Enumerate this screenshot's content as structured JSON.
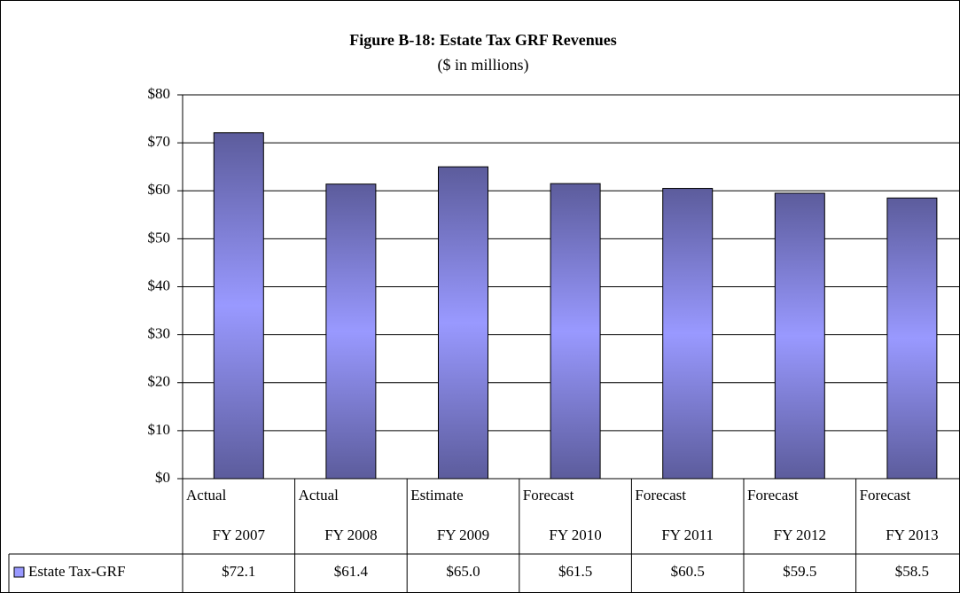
{
  "chart_data": {
    "type": "bar",
    "title": "Figure B-18: Estate Tax  GRF Revenues",
    "subtitle": "($ in millions)",
    "categories": [
      [
        "Actual",
        "FY 2007"
      ],
      [
        "Actual",
        "FY 2008"
      ],
      [
        "Estimate",
        "FY 2009"
      ],
      [
        "Forecast",
        "FY 2010"
      ],
      [
        "Forecast",
        "FY 2011"
      ],
      [
        "Forecast",
        "FY 2012"
      ],
      [
        "Forecast",
        "FY 2013"
      ]
    ],
    "series": [
      {
        "name": "Estate Tax-GRF",
        "color": "#9999ff",
        "values": [
          72.1,
          61.4,
          65.0,
          61.5,
          60.5,
          59.5,
          58.5
        ],
        "value_labels": [
          "$72.1",
          "$61.4",
          "$65.0",
          "$61.5",
          "$60.5",
          "$59.5",
          "$58.5"
        ]
      }
    ],
    "ylim": [
      0,
      80
    ],
    "yticks": [
      {
        "value": 0,
        "label": "$0"
      },
      {
        "value": 10,
        "label": "$10"
      },
      {
        "value": 20,
        "label": "$20"
      },
      {
        "value": 30,
        "label": "$30"
      },
      {
        "value": 40,
        "label": "$40"
      },
      {
        "value": 50,
        "label": "$50"
      },
      {
        "value": 60,
        "label": "$60"
      },
      {
        "value": 70,
        "label": "$70"
      },
      {
        "value": 80,
        "label": "$80"
      }
    ],
    "grid": true
  }
}
